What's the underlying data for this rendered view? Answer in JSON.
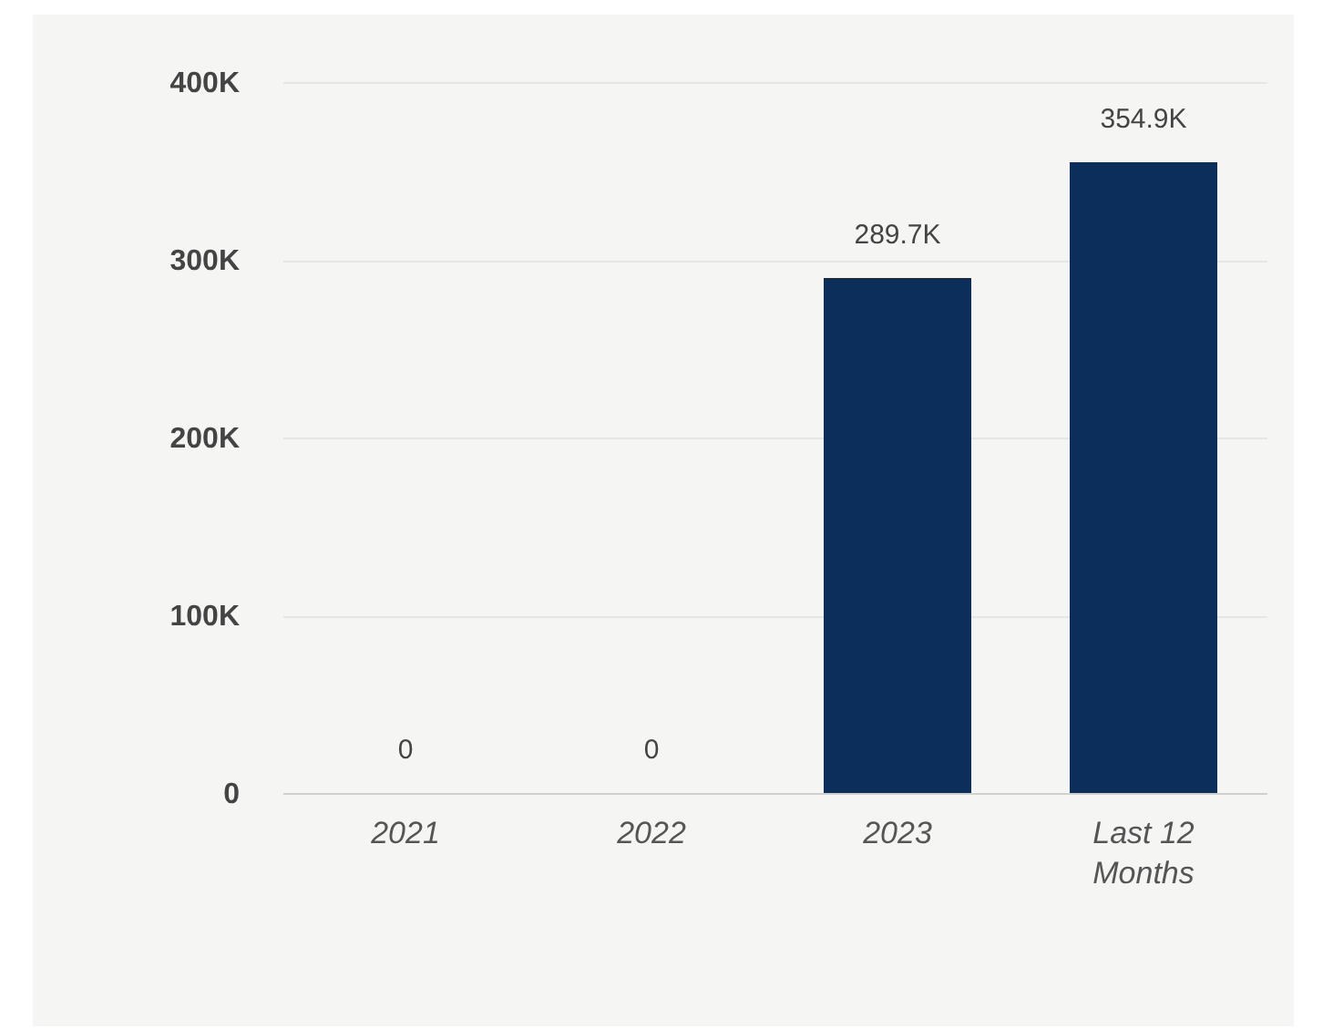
{
  "chart_data": {
    "type": "bar",
    "categories": [
      "2021",
      "2022",
      "2023",
      "Last 12 Months"
    ],
    "values": [
      0,
      0,
      289700,
      354900
    ],
    "value_labels": [
      "0",
      "0",
      "289.7K",
      "354.9K"
    ],
    "color": "#0b2f5a",
    "ylim": [
      0,
      400000
    ],
    "yticks": [
      {
        "value": 0,
        "label": "0"
      },
      {
        "value": 100000,
        "label": "100K"
      },
      {
        "value": 200000,
        "label": "200K"
      },
      {
        "value": 300000,
        "label": "300K"
      },
      {
        "value": 400000,
        "label": "400K"
      }
    ],
    "grid": "y"
  }
}
